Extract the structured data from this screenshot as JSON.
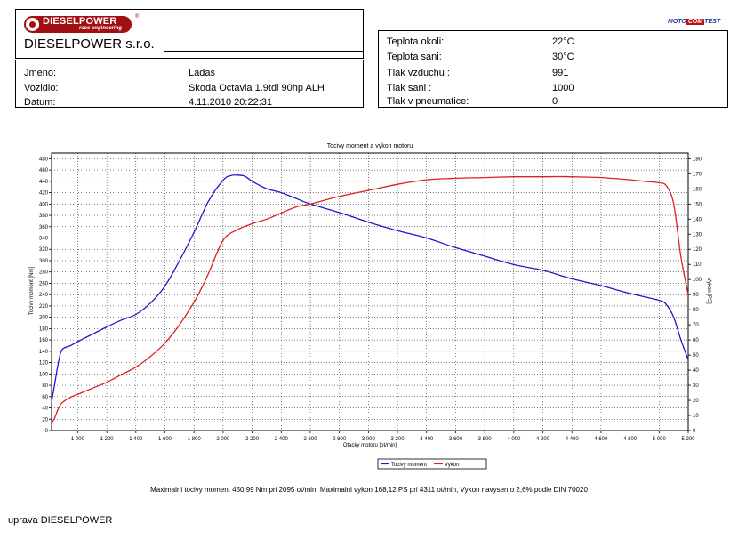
{
  "header": {
    "logo_text": "DIESELPOWER",
    "logo_subtext": "race engineering",
    "logo_reg": "®",
    "company": "DIESELPOWER s.r.o.",
    "badge_moto": "MOTO",
    "badge_com": "COM",
    "badge_test": "TEST"
  },
  "info": [
    {
      "label": "Jmeno:",
      "value": "Ladas"
    },
    {
      "label": "Vozidlo:",
      "value": "Skoda Octavia 1.9tdi 90hp ALH"
    },
    {
      "label": "Datum:",
      "value": "4.11.2010 20:22:31"
    }
  ],
  "conditions": [
    {
      "label": "Teplota okoli:",
      "value": "22°C"
    },
    {
      "label": "Teplota sani:",
      "value": "30°C"
    },
    {
      "label": "Tlak vzduchu :",
      "value": "991"
    },
    {
      "label": "Tlak sani :",
      "value": "1000"
    },
    {
      "label": "Tlak v pneumatice:",
      "value": "0"
    }
  ],
  "summary": "Maximalni tocivy moment 450,99 Nm pri 2095 ot/min,  Maximalni vykon 168,12 PS pri 4311 ot/min,  Vykon navysen o 2,6% podle DIN 70020",
  "footer": "uprava DIESELPOWER",
  "colors": {
    "torque": "#1a1acc",
    "power": "#dd1f1f"
  },
  "chart_data": {
    "type": "line",
    "title": "Tocivy moment a vykon motoru",
    "xlabel": "Otacky motoru [ot/min]",
    "ylabel": "Tocivy moment [Nm]",
    "y2label": "Vykon [PS]",
    "xlim": [
      820,
      5200
    ],
    "ylim": [
      0,
      490
    ],
    "y2lim": [
      0,
      183.75
    ],
    "x_ticks": [
      1000,
      1200,
      1400,
      1600,
      1800,
      2000,
      2200,
      2400,
      2600,
      2800,
      3000,
      3200,
      3400,
      3600,
      3800,
      4000,
      4200,
      4400,
      4600,
      4800,
      5000,
      5200
    ],
    "x_tick_labels": [
      "1 000",
      "1 200",
      "1 400",
      "1 600",
      "1 800",
      "2 000",
      "2 200",
      "2 400",
      "2 600",
      "2 800",
      "3 000",
      "3 200",
      "3 400",
      "3 600",
      "3 800",
      "4 000",
      "4 200",
      "4 400",
      "4 600",
      "4 800",
      "5 000",
      "5 200"
    ],
    "y_ticks": [
      0,
      20,
      40,
      60,
      80,
      100,
      120,
      140,
      160,
      180,
      200,
      220,
      240,
      260,
      280,
      300,
      320,
      340,
      360,
      380,
      400,
      420,
      440,
      460,
      480
    ],
    "y2_ticks": [
      0,
      10,
      20,
      30,
      40,
      50,
      60,
      70,
      80,
      90,
      100,
      110,
      120,
      130,
      140,
      150,
      160,
      170,
      180
    ],
    "grid": true,
    "legend_position": "bottom-center",
    "series": [
      {
        "name": "Tocivy moment",
        "axis": "left",
        "x": [
          820,
          840,
          860,
          880,
          900,
          950,
          1000,
          1100,
          1200,
          1300,
          1400,
          1500,
          1600,
          1700,
          1800,
          1900,
          2000,
          2050,
          2095,
          2150,
          2200,
          2300,
          2400,
          2500,
          2600,
          2800,
          3000,
          3200,
          3400,
          3600,
          3800,
          4000,
          4200,
          4400,
          4600,
          4800,
          5000,
          5050,
          5100,
          5150,
          5200
        ],
        "values": [
          50,
          80,
          110,
          135,
          145,
          150,
          157,
          170,
          183,
          195,
          205,
          225,
          255,
          300,
          350,
          405,
          442,
          450,
          451,
          449,
          440,
          427,
          420,
          410,
          400,
          385,
          368,
          353,
          340,
          323,
          308,
          293,
          283,
          268,
          256,
          242,
          230,
          222,
          200,
          160,
          125
        ]
      },
      {
        "name": "Vykon",
        "axis": "right",
        "x": [
          820,
          840,
          860,
          880,
          900,
          950,
          1000,
          1100,
          1200,
          1300,
          1400,
          1500,
          1600,
          1700,
          1800,
          1850,
          1900,
          2000,
          2100,
          2200,
          2300,
          2400,
          2500,
          2600,
          2800,
          3000,
          3200,
          3400,
          3600,
          3800,
          4000,
          4200,
          4311,
          4400,
          4600,
          4800,
          4900,
          5000,
          5050,
          5100,
          5150,
          5200
        ],
        "values": [
          5,
          8,
          13,
          17,
          19,
          22,
          24,
          28,
          32,
          37,
          42,
          49,
          58,
          70,
          85,
          94,
          104,
          126,
          133,
          137,
          140,
          144,
          148,
          150,
          155,
          159,
          163,
          166,
          167,
          167.5,
          168,
          168,
          168.12,
          168,
          167.5,
          166,
          165,
          164,
          162,
          150,
          115,
          90
        ]
      }
    ]
  }
}
